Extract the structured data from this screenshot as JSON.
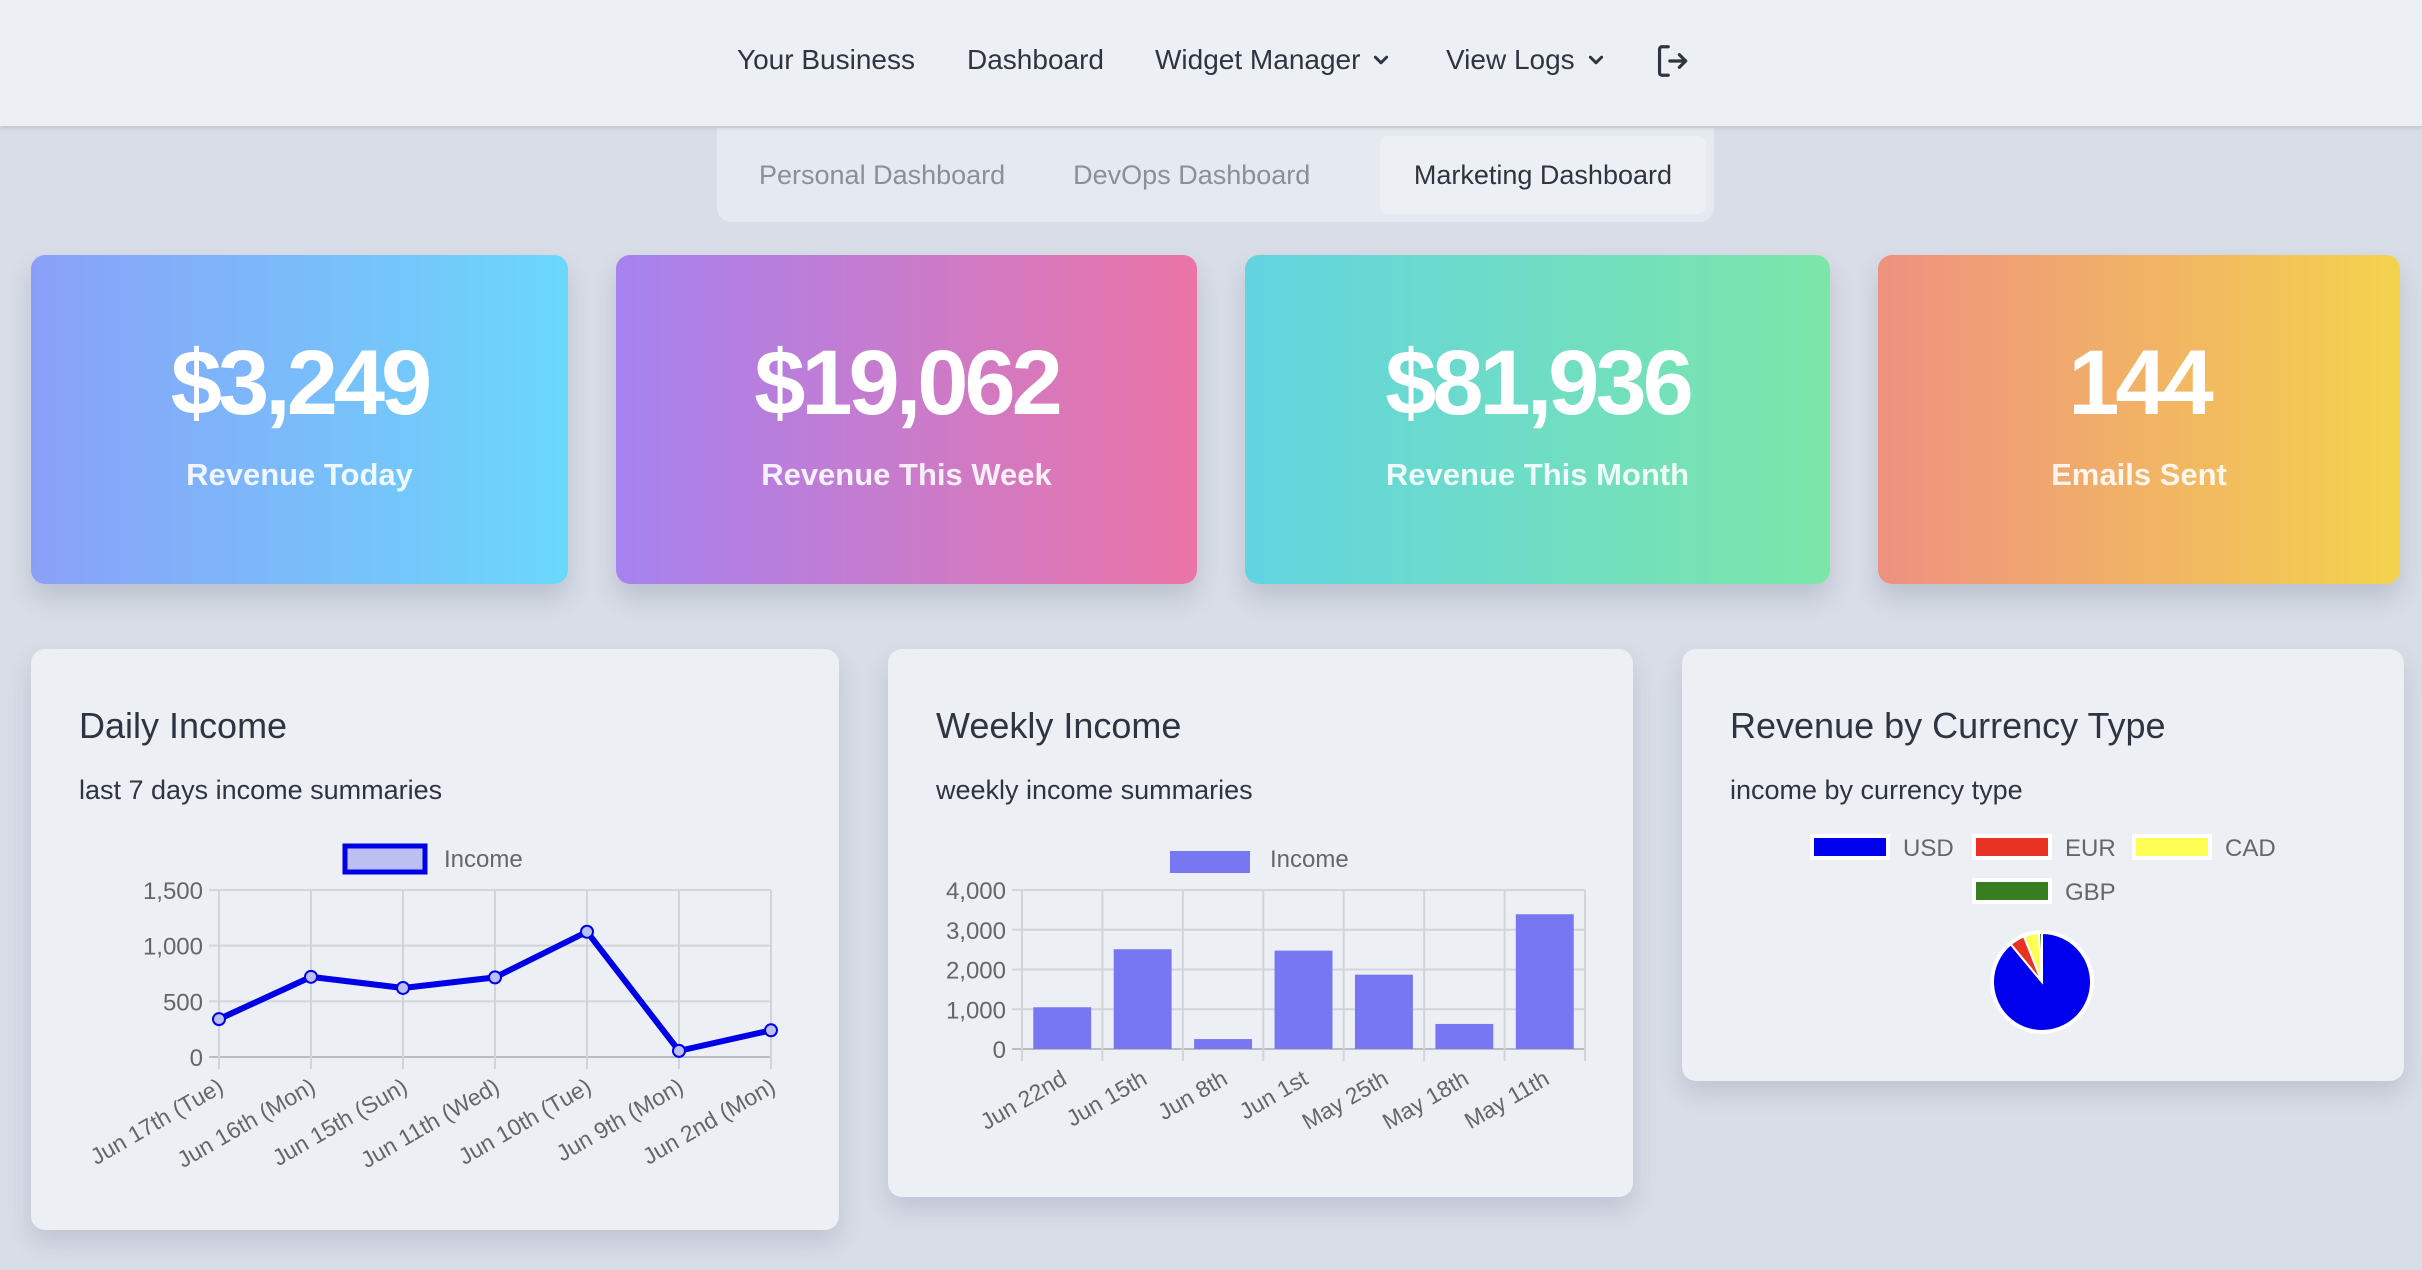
{
  "nav": {
    "items": [
      {
        "label": "Your Business",
        "dropdown": false
      },
      {
        "label": "Dashboard",
        "dropdown": false
      },
      {
        "label": "Widget Manager",
        "dropdown": true
      },
      {
        "label": "View Logs",
        "dropdown": true
      }
    ],
    "logout_icon": "logout-icon"
  },
  "tabs": [
    {
      "label": "Personal Dashboard",
      "active": false
    },
    {
      "label": "DevOps Dashboard",
      "active": false
    },
    {
      "label": "Marketing Dashboard",
      "active": true
    }
  ],
  "stats": [
    {
      "value": "$3,249",
      "label": "Revenue Today",
      "gradient": [
        "#8aa0f8",
        "#6ad8fb"
      ]
    },
    {
      "value": "$19,062",
      "label": "Revenue This Week",
      "gradient": [
        "#a582f0",
        "#ec74a6"
      ]
    },
    {
      "value": "$81,936",
      "label": "Revenue This Month",
      "gradient": [
        "#62d4e0",
        "#7ce6a8"
      ]
    },
    {
      "value": "144",
      "label": "Emails Sent",
      "gradient": [
        "#ee9180",
        "#f4d34c"
      ]
    }
  ],
  "cards": {
    "daily": {
      "title": "Daily Income",
      "subtitle": "last 7 days income summaries"
    },
    "weekly": {
      "title": "Weekly Income",
      "subtitle": "weekly income summaries"
    },
    "currency": {
      "title": "Revenue by Currency Type",
      "subtitle": "income by currency type"
    }
  },
  "chart_data": [
    {
      "type": "line",
      "title": "Daily Income",
      "subtitle": "last 7 days income summaries",
      "categories": [
        "Jun 17th (Tue)",
        "Jun 16th (Mon)",
        "Jun 15th (Sun)",
        "Jun 11th (Wed)",
        "Jun 10th (Tue)",
        "Jun 9th (Mon)",
        "Jun 2nd (Mon)"
      ],
      "series": [
        {
          "name": "Income",
          "values": [
            340,
            720,
            620,
            715,
            1125,
            55,
            240
          ],
          "color": "#0000e6",
          "fill": "#bcbff2"
        }
      ],
      "yticks": [
        "0",
        "500",
        "1,000",
        "1,500"
      ],
      "ylim": [
        0,
        1500
      ],
      "xlabel": "",
      "ylabel": "",
      "grid": true,
      "legend_position": "top"
    },
    {
      "type": "bar",
      "title": "Weekly Income",
      "subtitle": "weekly income summaries",
      "categories": [
        "Jun 22nd",
        "Jun 15th",
        "Jun 8th",
        "Jun 1st",
        "May 25th",
        "May 18th",
        "May 11th"
      ],
      "series": [
        {
          "name": "Income",
          "values": [
            1050,
            2510,
            250,
            2475,
            1870,
            630,
            3390
          ],
          "color": "#7777f2"
        }
      ],
      "yticks": [
        "0",
        "1,000",
        "2,000",
        "3,000",
        "4,000"
      ],
      "ylim": [
        0,
        4000
      ],
      "xlabel": "",
      "ylabel": "",
      "grid": true,
      "legend_position": "top"
    },
    {
      "type": "pie",
      "title": "Revenue by Currency Type",
      "subtitle": "income by currency type",
      "categories": [
        "USD",
        "EUR",
        "CAD",
        "GBP"
      ],
      "values": [
        89,
        5,
        5,
        1
      ],
      "colors": [
        "#0000ee",
        "#e83324",
        "#fdfd54",
        "#377d22"
      ],
      "legend_position": "top"
    }
  ]
}
